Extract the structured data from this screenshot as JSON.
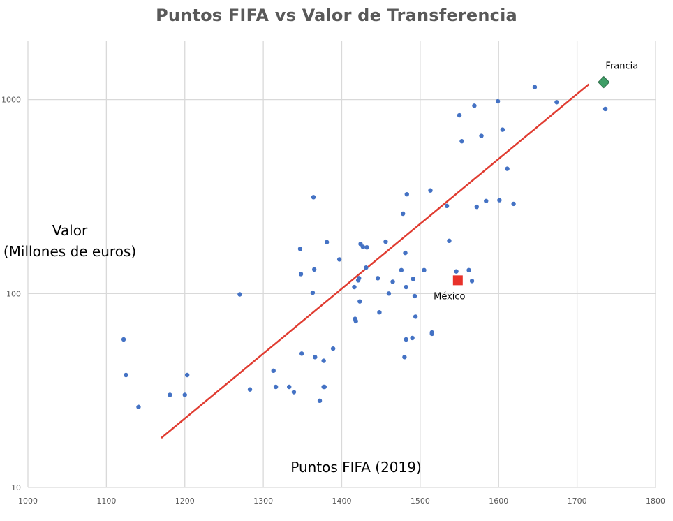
{
  "chart_data": {
    "type": "scatter",
    "title": "Puntos FIFA  vs Valor de Transferencia",
    "xlabel": "Puntos FIFA (2019)",
    "ylabel_line1": "Valor",
    "ylabel_line2": "(Millones de euros)",
    "xlim": [
      1000,
      1800
    ],
    "ylim": [
      10,
      2000
    ],
    "y_scale": "log",
    "x_ticks": [
      "1000",
      "1100",
      "1200",
      "1300",
      "1400",
      "1500",
      "1600",
      "1700",
      "1800"
    ],
    "y_ticks": [
      "10",
      "100",
      "1000"
    ],
    "grid": true,
    "point_color": "#4472C4",
    "trendline": {
      "x": [
        1170,
        1715
      ],
      "y": [
        18,
        1200
      ],
      "color": "#E03C31"
    },
    "points": [
      [
        1122,
        58
      ],
      [
        1125,
        38
      ],
      [
        1141,
        26
      ],
      [
        1181,
        30
      ],
      [
        1200,
        30
      ],
      [
        1203,
        38
      ],
      [
        1270,
        99
      ],
      [
        1283,
        32
      ],
      [
        1313,
        40
      ],
      [
        1316,
        33
      ],
      [
        1333,
        33
      ],
      [
        1339,
        31
      ],
      [
        1347,
        170
      ],
      [
        1348,
        126
      ],
      [
        1349,
        49
      ],
      [
        1363,
        101
      ],
      [
        1364,
        314
      ],
      [
        1365,
        133
      ],
      [
        1366,
        47
      ],
      [
        1372,
        28
      ],
      [
        1377,
        45
      ],
      [
        1377,
        33
      ],
      [
        1378,
        33
      ],
      [
        1381,
        184
      ],
      [
        1389,
        52
      ],
      [
        1397,
        150
      ],
      [
        1416,
        108
      ],
      [
        1417,
        74
      ],
      [
        1418,
        72
      ],
      [
        1421,
        117
      ],
      [
        1422,
        120
      ],
      [
        1423,
        91
      ],
      [
        1424,
        180
      ],
      [
        1427,
        174
      ],
      [
        1431,
        136
      ],
      [
        1432,
        173
      ],
      [
        1446,
        120
      ],
      [
        1448,
        80
      ],
      [
        1456,
        185
      ],
      [
        1460,
        100
      ],
      [
        1465,
        115
      ],
      [
        1476,
        132
      ],
      [
        1478,
        258
      ],
      [
        1480,
        47
      ],
      [
        1481,
        162
      ],
      [
        1482,
        108
      ],
      [
        1482,
        58
      ],
      [
        1483,
        325
      ],
      [
        1490,
        59
      ],
      [
        1491,
        119
      ],
      [
        1493,
        97
      ],
      [
        1494,
        76
      ],
      [
        1505,
        132
      ],
      [
        1513,
        340
      ],
      [
        1515,
        63
      ],
      [
        1515,
        62
      ],
      [
        1534,
        283
      ],
      [
        1537,
        187
      ],
      [
        1546,
        130
      ],
      [
        1550,
        830
      ],
      [
        1553,
        610
      ],
      [
        1562,
        132
      ],
      [
        1566,
        116
      ],
      [
        1569,
        930
      ],
      [
        1572,
        280
      ],
      [
        1578,
        650
      ],
      [
        1584,
        300
      ],
      [
        1599,
        980
      ],
      [
        1601,
        303
      ],
      [
        1605,
        700
      ],
      [
        1611,
        440
      ],
      [
        1619,
        290
      ],
      [
        1646,
        1160
      ],
      [
        1674,
        970
      ],
      [
        1736,
        895
      ]
    ],
    "highlights": [
      {
        "label": "Francia",
        "x": 1734,
        "y": 1230,
        "color": "#3E9E66",
        "marker": "diamond"
      },
      {
        "label": "México",
        "x": 1548,
        "y": 117,
        "color": "#E8322B",
        "marker": "square"
      }
    ]
  }
}
